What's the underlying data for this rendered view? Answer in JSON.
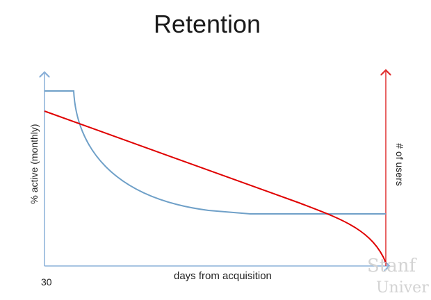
{
  "slide": {
    "title": "Retention",
    "x_axis_label": "days from acquisition",
    "x_axis_tick": "30",
    "left_axis_label": "% active (monthly)",
    "right_axis_label": "# of users",
    "watermark": [
      "Stanf",
      "Univer"
    ]
  },
  "colors": {
    "retention_curve": "#6fa0c8",
    "users_curve": "#e00000",
    "left_axis": "#8ab0d8",
    "right_axis": "#e03030"
  },
  "chart_data": {
    "type": "line",
    "title": "Retention",
    "xlabel": "days from acquisition",
    "ylabel": "% active (monthly)",
    "y2label": "# of users",
    "series": [
      {
        "axis": "left",
        "color": "#6fa0c8",
        "shape": "flat at top until shortly after 30, then drops steeply and decays to a lower plateau"
      },
      {
        "axis": "right",
        "color": "#e00000",
        "shape": "declines steadily from upper left, then curves sharply to zero at the right axis"
      }
    ]
  }
}
